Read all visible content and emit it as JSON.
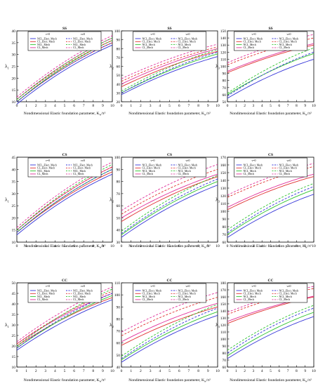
{
  "figure": {
    "row_xlabel": "Nondimensional Elastic foundation parameter, K",
    "row_xlabel_sub": "w",
    "row_xlabel_tail": "/π²",
    "ylabel_main": "λ",
    "ylabel_subs": [
      "1",
      "2",
      "3"
    ],
    "legend_headers": [
      "ν=0",
      "ν≠0"
    ],
    "legend_entries": [
      "NCL_Elect. Mech",
      "CL_Elect. Mech",
      "NCL_Mech",
      "CL_Mech"
    ],
    "series_colors": {
      "NCL_Elect. Mech": "#3535d8",
      "CL_Elect. Mech": "#e03030",
      "NCL_Mech": "#2fc42f",
      "CL_Mech": "#e0309a"
    },
    "line_styles": {
      "ν=0": "solid",
      "ν≠0": "dashed"
    }
  },
  "chart_data": [
    {
      "type": "line",
      "title": "SS",
      "xlabel": "Nondimensional Elastic foundation parameter, Kw/π²",
      "ylabel": "λ1",
      "xlim": [
        0,
        10
      ],
      "ylim": [
        10,
        40
      ],
      "xticks": [
        0,
        1,
        2,
        3,
        4,
        5,
        6,
        7,
        8,
        9,
        10
      ],
      "yticks": [
        10,
        15,
        20,
        25,
        30,
        35,
        40
      ],
      "series": [
        {
          "name": "NCL_Elect. Mech",
          "nu": "ν=0",
          "values": [
            9,
            34
          ]
        },
        {
          "name": "CL_Elect. Mech",
          "nu": "ν=0",
          "values": [
            10,
            35
          ]
        },
        {
          "name": "NCL_Mech",
          "nu": "ν=0",
          "values": [
            10,
            36
          ]
        },
        {
          "name": "CL_Mech",
          "nu": "ν=0",
          "values": [
            11,
            37
          ]
        },
        {
          "name": "NCL_Elect. Mech",
          "nu": "ν≠0",
          "values": [
            10,
            35
          ]
        },
        {
          "name": "CL_Elect. Mech",
          "nu": "ν≠0",
          "values": [
            11,
            36
          ]
        },
        {
          "name": "NCL_Mech",
          "nu": "ν≠0",
          "values": [
            11,
            37
          ]
        },
        {
          "name": "CL_Mech",
          "nu": "ν≠0",
          "values": [
            12,
            38
          ]
        }
      ]
    },
    {
      "type": "line",
      "title": "SS",
      "xlabel": "Nondimensional Elastic foundation parameter, Kw/π²",
      "ylabel": "λ2",
      "xlim": [
        0,
        10
      ],
      "ylim": [
        20,
        100
      ],
      "xticks": [
        0,
        1,
        2,
        3,
        4,
        5,
        6,
        7,
        8,
        9,
        10
      ],
      "yticks": [
        20,
        30,
        40,
        50,
        60,
        70,
        80,
        90,
        100
      ],
      "series": [
        {
          "name": "NCL_Elect. Mech",
          "nu": "ν=0",
          "values": [
            28,
            71
          ]
        },
        {
          "name": "CL_Elect. Mech",
          "nu": "ν=0",
          "values": [
            37,
            77
          ]
        },
        {
          "name": "NCL_Mech",
          "nu": "ν=0",
          "values": [
            30,
            74
          ]
        },
        {
          "name": "CL_Mech",
          "nu": "ν=0",
          "values": [
            40,
            80
          ]
        },
        {
          "name": "NCL_Elect. Mech",
          "nu": "ν≠0",
          "values": [
            30,
            76
          ]
        },
        {
          "name": "CL_Elect. Mech",
          "nu": "ν≠0",
          "values": [
            43,
            82
          ]
        },
        {
          "name": "NCL_Mech",
          "nu": "ν≠0",
          "values": [
            32,
            79
          ]
        },
        {
          "name": "CL_Mech",
          "nu": "ν≠0",
          "values": [
            46,
            85
          ]
        }
      ]
    },
    {
      "type": "line",
      "title": "SS",
      "xlabel": "Nondimensional Elastic foundation parameter, Kw/π²",
      "ylabel": "λ3",
      "xlim": [
        0,
        10
      ],
      "ylim": [
        50,
        150
      ],
      "xticks": [
        0,
        1,
        2,
        3,
        4,
        5,
        6,
        7,
        8,
        9,
        10
      ],
      "yticks": [
        50,
        60,
        70,
        80,
        90,
        100,
        110,
        120,
        130,
        140,
        150
      ],
      "series": [
        {
          "name": "NCL_Elect. Mech",
          "nu": "ν=0",
          "values": [
            55,
            110
          ]
        },
        {
          "name": "CL_Elect. Mech",
          "nu": "ν=0",
          "values": [
            91,
            130
          ]
        },
        {
          "name": "NCL_Mech",
          "nu": "ν=0",
          "values": [
            60,
            118
          ]
        },
        {
          "name": "CL_Mech",
          "nu": "ν=0",
          "values": [
            93,
            132
          ]
        },
        {
          "name": "NCL_Elect. Mech",
          "nu": "ν≠0",
          "values": [
            58,
            120
          ]
        },
        {
          "name": "CL_Elect. Mech",
          "nu": "ν≠0",
          "values": [
            102,
            140
          ]
        },
        {
          "name": "NCL_Mech",
          "nu": "ν≠0",
          "values": [
            62,
            126
          ]
        },
        {
          "name": "CL_Mech",
          "nu": "ν≠0",
          "values": [
            105,
            145
          ]
        }
      ]
    },
    {
      "type": "line",
      "title": "CS",
      "xlabel": "Nondimensional Elastic foundation parameter, Kw/π²",
      "ylabel": "λ1",
      "xlim": [
        0,
        10
      ],
      "ylim": [
        10,
        45
      ],
      "xticks": [
        0,
        1,
        2,
        3,
        4,
        5,
        6,
        7,
        8,
        9,
        10
      ],
      "yticks": [
        10,
        15,
        20,
        25,
        30,
        35,
        40,
        45
      ],
      "series": [
        {
          "name": "NCL_Elect. Mech",
          "nu": "ν=0",
          "values": [
            13,
            38
          ]
        },
        {
          "name": "CL_Elect. Mech",
          "nu": "ν=0",
          "values": [
            14,
            39
          ]
        },
        {
          "name": "NCL_Mech",
          "nu": "ν=0",
          "values": [
            14,
            40
          ]
        },
        {
          "name": "CL_Mech",
          "nu": "ν=0",
          "values": [
            15,
            41
          ]
        },
        {
          "name": "NCL_Elect. Mech",
          "nu": "ν≠0",
          "values": [
            14,
            40
          ]
        },
        {
          "name": "CL_Elect. Mech",
          "nu": "ν≠0",
          "values": [
            15,
            41
          ]
        },
        {
          "name": "NCL_Mech",
          "nu": "ν≠0",
          "values": [
            15,
            42
          ]
        },
        {
          "name": "CL_Mech",
          "nu": "ν≠0",
          "values": [
            16,
            43
          ]
        }
      ]
    },
    {
      "type": "line",
      "title": "CS",
      "xlabel": "Nondimensional Elastic foundation parameter, Kw/π²",
      "ylabel": "λ2",
      "xlim": [
        0,
        10
      ],
      "ylim": [
        30,
        100
      ],
      "xticks": [
        0,
        1,
        2,
        3,
        4,
        5,
        6,
        7,
        8,
        9,
        10
      ],
      "yticks": [
        30,
        40,
        50,
        60,
        70,
        80,
        90,
        100
      ],
      "series": [
        {
          "name": "NCL_Elect. Mech",
          "nu": "ν=0",
          "values": [
            34,
            77
          ]
        },
        {
          "name": "CL_Elect. Mech",
          "nu": "ν=0",
          "values": [
            47,
            84
          ]
        },
        {
          "name": "NCL_Mech",
          "nu": "ν=0",
          "values": [
            36,
            80
          ]
        },
        {
          "name": "CL_Mech",
          "nu": "ν=0",
          "values": [
            50,
            86
          ]
        },
        {
          "name": "NCL_Elect. Mech",
          "nu": "ν≠0",
          "values": [
            37,
            82
          ]
        },
        {
          "name": "CL_Elect. Mech",
          "nu": "ν≠0",
          "values": [
            53,
            90
          ]
        },
        {
          "name": "NCL_Mech",
          "nu": "ν≠0",
          "values": [
            39,
            85
          ]
        },
        {
          "name": "CL_Mech",
          "nu": "ν≠0",
          "values": [
            56,
            94
          ]
        }
      ]
    },
    {
      "type": "line",
      "title": "CS",
      "xlabel": "Nondimensional Elastic foundation parameter, Kw/π²",
      "ylabel": "λ3",
      "xlim": [
        0,
        10
      ],
      "ylim": [
        60,
        170
      ],
      "xticks": [
        0,
        1,
        2,
        3,
        4,
        5,
        6,
        7,
        8,
        9,
        10
      ],
      "yticks": [
        60,
        70,
        80,
        90,
        100,
        110,
        120,
        130,
        140,
        150,
        160,
        170
      ],
      "series": [
        {
          "name": "NCL_Elect. Mech",
          "nu": "ν=0",
          "values": [
            66,
            122
          ]
        },
        {
          "name": "CL_Elect. Mech",
          "nu": "ν=0",
          "values": [
            102,
            145
          ]
        },
        {
          "name": "NCL_Mech",
          "nu": "ν=0",
          "values": [
            70,
            128
          ]
        },
        {
          "name": "CL_Mech",
          "nu": "ν=0",
          "values": [
            105,
            148
          ]
        },
        {
          "name": "NCL_Elect. Mech",
          "nu": "ν≠0",
          "values": [
            72,
            132
          ]
        },
        {
          "name": "CL_Elect. Mech",
          "nu": "ν≠0",
          "values": [
            118,
            158
          ]
        },
        {
          "name": "NCL_Mech",
          "nu": "ν≠0",
          "values": [
            76,
            136
          ]
        },
        {
          "name": "CL_Mech",
          "nu": "ν≠0",
          "values": [
            121,
            162
          ]
        }
      ]
    },
    {
      "type": "line",
      "title": "CC",
      "xlabel": "Nondimensional Elastic foundation parameter, Kw/π²",
      "ylabel": "λ1",
      "xlim": [
        0,
        10
      ],
      "ylim": [
        10,
        50
      ],
      "xticks": [
        0,
        1,
        2,
        3,
        4,
        5,
        6,
        7,
        8,
        9,
        10
      ],
      "yticks": [
        10,
        15,
        20,
        25,
        30,
        35,
        40,
        45,
        50
      ],
      "series": [
        {
          "name": "NCL_Elect. Mech",
          "nu": "ν=0",
          "values": [
            18,
            42
          ]
        },
        {
          "name": "CL_Elect. Mech",
          "nu": "ν=0",
          "values": [
            20,
            43
          ]
        },
        {
          "name": "NCL_Mech",
          "nu": "ν=0",
          "values": [
            19,
            44
          ]
        },
        {
          "name": "CL_Mech",
          "nu": "ν=0",
          "values": [
            21,
            45
          ]
        },
        {
          "name": "NCL_Elect. Mech",
          "nu": "ν≠0",
          "values": [
            19,
            45
          ]
        },
        {
          "name": "CL_Elect. Mech",
          "nu": "ν≠0",
          "values": [
            21,
            46
          ]
        },
        {
          "name": "NCL_Mech",
          "nu": "ν≠0",
          "values": [
            20,
            47
          ]
        },
        {
          "name": "CL_Mech",
          "nu": "ν≠0",
          "values": [
            22,
            48
          ]
        }
      ]
    },
    {
      "type": "line",
      "title": "CC",
      "xlabel": "Nondimensional Elastic foundation parameter, Kw/π²",
      "ylabel": "λ2",
      "xlim": [
        0,
        10
      ],
      "ylim": [
        40,
        110
      ],
      "xticks": [
        0,
        1,
        2,
        3,
        4,
        5,
        6,
        7,
        8,
        9,
        10
      ],
      "yticks": [
        40,
        50,
        60,
        70,
        80,
        90,
        100,
        110
      ],
      "series": [
        {
          "name": "NCL_Elect. Mech",
          "nu": "ν=0",
          "values": [
            44,
            83
          ]
        },
        {
          "name": "CL_Elect. Mech",
          "nu": "ν=0",
          "values": [
            58,
            90
          ]
        },
        {
          "name": "NCL_Mech",
          "nu": "ν=0",
          "values": [
            46,
            86
          ]
        },
        {
          "name": "CL_Mech",
          "nu": "ν=0",
          "values": [
            61,
            93
          ]
        },
        {
          "name": "NCL_Elect. Mech",
          "nu": "ν≠0",
          "values": [
            47,
            89
          ]
        },
        {
          "name": "CL_Elect. Mech",
          "nu": "ν≠0",
          "values": [
            66,
            98
          ]
        },
        {
          "name": "NCL_Mech",
          "nu": "ν≠0",
          "values": [
            49,
            92
          ]
        },
        {
          "name": "CL_Mech",
          "nu": "ν≠0",
          "values": [
            69,
            102
          ]
        }
      ]
    },
    {
      "type": "line",
      "title": "CC",
      "xlabel": "Nondimensional Elastic foundation parameter, Kw/π²",
      "ylabel": "λ3",
      "xlim": [
        0,
        10
      ],
      "ylim": [
        60,
        180
      ],
      "xticks": [
        0,
        1,
        2,
        3,
        4,
        5,
        6,
        7,
        8,
        9,
        10
      ],
      "yticks": [
        60,
        70,
        80,
        90,
        100,
        110,
        120,
        130,
        140,
        150,
        160,
        170,
        180
      ],
      "series": [
        {
          "name": "NCL_Elect. Mech",
          "nu": "ν=0",
          "values": [
            72,
            132
          ]
        },
        {
          "name": "CL_Elect. Mech",
          "nu": "ν=0",
          "values": [
            122,
            160
          ]
        },
        {
          "name": "NCL_Mech",
          "nu": "ν=0",
          "values": [
            76,
            138
          ]
        },
        {
          "name": "CL_Mech",
          "nu": "ν=0",
          "values": [
            125,
            161
          ]
        },
        {
          "name": "NCL_Elect. Mech",
          "nu": "ν≠0",
          "values": [
            80,
            144
          ]
        },
        {
          "name": "CL_Elect. Mech",
          "nu": "ν≠0",
          "values": [
            135,
            172
          ]
        },
        {
          "name": "NCL_Mech",
          "nu": "ν≠0",
          "values": [
            84,
            148
          ]
        },
        {
          "name": "CL_Mech",
          "nu": "ν≠0",
          "values": [
            138,
            175
          ]
        }
      ]
    }
  ]
}
